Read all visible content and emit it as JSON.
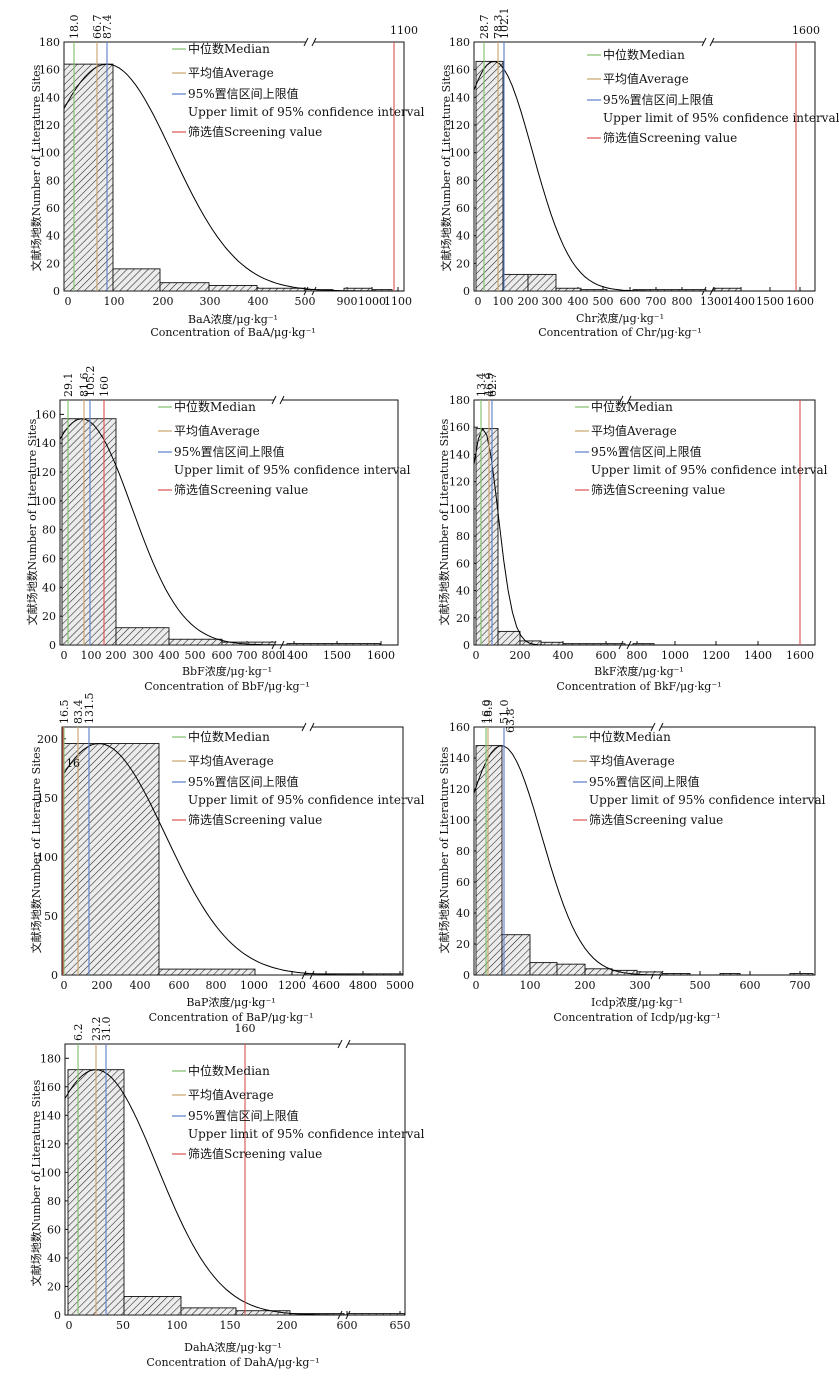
{
  "legend": {
    "median": "中位数Median",
    "average": "平均值Average",
    "upper_line1": "95%置信区间上限值",
    "upper_line2": "Upper limit of 95% confidence interval",
    "screening": "筛选值Screening value"
  },
  "colors": {
    "median": "#7fbf6a",
    "average": "#c8a36a",
    "upper": "#5a7fc7",
    "screening": "#d9534f",
    "bar_fill": "#e8e8e8",
    "bar_stroke": "#000000",
    "curve": "#000000"
  },
  "chart_data": [
    {
      "id": "baa",
      "type": "bar",
      "title": "",
      "ylabel": "文献场地数Number of Literature Sites",
      "xlabel_cn": "BaA浓度/μg·kg⁻¹",
      "xlabel_en": "Concentration of BaA/μg·kg⁻¹",
      "ylim": [
        0,
        180
      ],
      "yticks": [
        "0",
        "20",
        "40",
        "60",
        "80",
        "100",
        "120",
        "140",
        "160",
        "180"
      ],
      "xticks": [
        "0",
        "100",
        "200",
        "300",
        "400",
        "500",
        "900",
        "1000",
        "1100"
      ],
      "bins": [
        {
          "x0": 0,
          "x1": 90,
          "count": 164
        },
        {
          "x0": 90,
          "x1": 190,
          "count": 16
        },
        {
          "x0": 190,
          "x1": 290,
          "count": 6
        },
        {
          "x0": 290,
          "x1": 390,
          "count": 4
        },
        {
          "x0": 390,
          "x1": 490,
          "count": 2
        },
        {
          "x0": 490,
          "x1": 600,
          "count": 1
        },
        {
          "x0": 800,
          "x1": 1000,
          "count": 2
        },
        {
          "x0": 1000,
          "x1": 1100,
          "count": 1
        }
      ],
      "stats": {
        "median": "18.0",
        "average": "66.7",
        "upper": "87.4",
        "screening": "1100"
      }
    },
    {
      "id": "chr",
      "type": "bar",
      "title": "",
      "ylabel": "文献场地数Number of Literature Sites",
      "xlabel_cn": "Chr浓度/μg·kg⁻¹",
      "xlabel_en": "Concentration of Chr/μg·kg⁻¹",
      "ylim": [
        0,
        180
      ],
      "yticks": [
        "0",
        "20",
        "40",
        "60",
        "80",
        "100",
        "120",
        "140",
        "160",
        "180"
      ],
      "xticks": [
        "0",
        "100",
        "200",
        "300",
        "400",
        "500",
        "600",
        "700",
        "800",
        "1300",
        "1400",
        "1500",
        "1600"
      ],
      "bins": [
        {
          "x0": 0,
          "x1": 100,
          "count": 166
        },
        {
          "x0": 100,
          "x1": 200,
          "count": 12
        },
        {
          "x0": 200,
          "x1": 300,
          "count": 12
        },
        {
          "x0": 300,
          "x1": 400,
          "count": 2
        },
        {
          "x0": 400,
          "x1": 500,
          "count": 1
        },
        {
          "x0": 600,
          "x1": 800,
          "count": 1
        },
        {
          "x0": 1300,
          "x1": 1400,
          "count": 2
        }
      ],
      "stats": {
        "median": "28.7",
        "average": "78.3",
        "upper": "102.1",
        "screening": "1600"
      }
    },
    {
      "id": "bbf",
      "type": "bar",
      "title": "",
      "ylabel": "文献场地数Number of Literature Sites",
      "xlabel_cn": "BbF浓度/μg·kg⁻¹",
      "xlabel_en": "Concentration of BbF/μg·kg⁻¹",
      "ylim": [
        0,
        170
      ],
      "yticks": [
        "0",
        "20",
        "40",
        "60",
        "80",
        "100",
        "120",
        "140",
        "160"
      ],
      "xticks": [
        "0",
        "100",
        "200",
        "300",
        "400",
        "500",
        "600",
        "700",
        "800",
        "1400",
        "1500",
        "1600"
      ],
      "bins": [
        {
          "x0": 0,
          "x1": 200,
          "count": 157
        },
        {
          "x0": 200,
          "x1": 400,
          "count": 12
        },
        {
          "x0": 400,
          "x1": 600,
          "count": 4
        },
        {
          "x0": 600,
          "x1": 800,
          "count": 2
        },
        {
          "x0": 1300,
          "x1": 1600,
          "count": 1
        }
      ],
      "stats": {
        "median": "29.1",
        "average": "81.6",
        "upper": "105.2",
        "screening": "160"
      }
    },
    {
      "id": "bkf",
      "type": "bar",
      "title": "",
      "ylabel": "文献场地数Number of Literature Sites",
      "xlabel_cn": "BkF浓度/μg·kg⁻¹",
      "xlabel_en": "Concentration of BkF/μg·kg⁻¹",
      "ylim": [
        0,
        180
      ],
      "yticks": [
        "0",
        "20",
        "40",
        "60",
        "80",
        "100",
        "120",
        "140",
        "160",
        "180"
      ],
      "xticks": [
        "0",
        "200",
        "400",
        "600",
        "800",
        "1000",
        "1200",
        "1400",
        "1600"
      ],
      "bins": [
        {
          "x0": 0,
          "x1": 100,
          "count": 159
        },
        {
          "x0": 100,
          "x1": 200,
          "count": 10
        },
        {
          "x0": 200,
          "x1": 300,
          "count": 3
        },
        {
          "x0": 300,
          "x1": 400,
          "count": 2
        },
        {
          "x0": 400,
          "x1": 700,
          "count": 1
        },
        {
          "x0": 800,
          "x1": 900,
          "count": 1
        }
      ],
      "stats": {
        "median": "13.4",
        "average": "46.9",
        "upper": "62.7",
        "screening": "1600"
      }
    },
    {
      "id": "bap",
      "type": "bar",
      "title": "",
      "ylabel": "文献场地数Number of Literature Sites",
      "xlabel_cn": "BaP浓度/μg·kg⁻¹",
      "xlabel_en": "Concentration of BaP/μg·kg⁻¹",
      "ylim": [
        0,
        210
      ],
      "yticks": [
        "0",
        "50",
        "100",
        "150",
        "200"
      ],
      "xticks": [
        "0",
        "200",
        "400",
        "600",
        "800",
        "1000",
        "1200",
        "4600",
        "4800",
        "5000"
      ],
      "bins": [
        {
          "x0": 0,
          "x1": 500,
          "count": 196
        },
        {
          "x0": 500,
          "x1": 1000,
          "count": 5
        },
        {
          "x0": 4400,
          "x1": 5000,
          "count": 1
        }
      ],
      "stats": {
        "median": "16.5",
        "average": "83.4",
        "upper": "131.5",
        "screening": "16"
      }
    },
    {
      "id": "icdp",
      "type": "bar",
      "title": "",
      "ylabel": "文献场地数Number of Literature Sites",
      "xlabel_cn": "Icdp浓度/μg·kg⁻¹",
      "xlabel_en": "Concentration of Icdp/μg·kg⁻¹",
      "ylim": [
        0,
        160
      ],
      "yticks": [
        "0",
        "20",
        "40",
        "60",
        "80",
        "100",
        "120",
        "140",
        "160"
      ],
      "xticks": [
        "0",
        "100",
        "200",
        "300",
        "500",
        "600",
        "700"
      ],
      "bins": [
        {
          "x0": 0,
          "x1": 50,
          "count": 148
        },
        {
          "x0": 50,
          "x1": 100,
          "count": 26
        },
        {
          "x0": 100,
          "x1": 150,
          "count": 8
        },
        {
          "x0": 150,
          "x1": 200,
          "count": 7
        },
        {
          "x0": 200,
          "x1": 250,
          "count": 4
        },
        {
          "x0": 250,
          "x1": 300,
          "count": 3
        },
        {
          "x0": 300,
          "x1": 350,
          "count": 2
        },
        {
          "x0": 350,
          "x1": 400,
          "count": 1
        },
        {
          "x0": 550,
          "x1": 600,
          "count": 1
        },
        {
          "x0": 700,
          "x1": 750,
          "count": 1
        }
      ],
      "stats": {
        "median": "16.0",
        "average": "18.9",
        "upper": "51.0",
        "upper2": "63.8",
        "screening": ""
      }
    },
    {
      "id": "daha",
      "type": "bar",
      "title": "",
      "ylabel": "文献场地数Number of Literature Sites",
      "xlabel_cn": "DahA浓度/μg·kg⁻¹",
      "xlabel_en": "Concentration of DahA/μg·kg⁻¹",
      "ylim": [
        0,
        190
      ],
      "yticks": [
        "0",
        "20",
        "40",
        "60",
        "80",
        "100",
        "120",
        "140",
        "160",
        "180"
      ],
      "xticks": [
        "0",
        "50",
        "100",
        "150",
        "200",
        "600",
        "650"
      ],
      "bins": [
        {
          "x0": 0,
          "x1": 50,
          "count": 172
        },
        {
          "x0": 50,
          "x1": 100,
          "count": 13
        },
        {
          "x0": 100,
          "x1": 150,
          "count": 5
        },
        {
          "x0": 150,
          "x1": 200,
          "count": 3
        },
        {
          "x0": 200,
          "x1": 250,
          "count": 1
        },
        {
          "x0": 550,
          "x1": 650,
          "count": 1
        }
      ],
      "stats": {
        "median": "6.2",
        "average": "23.2",
        "upper": "31.0",
        "screening": "160"
      }
    }
  ]
}
